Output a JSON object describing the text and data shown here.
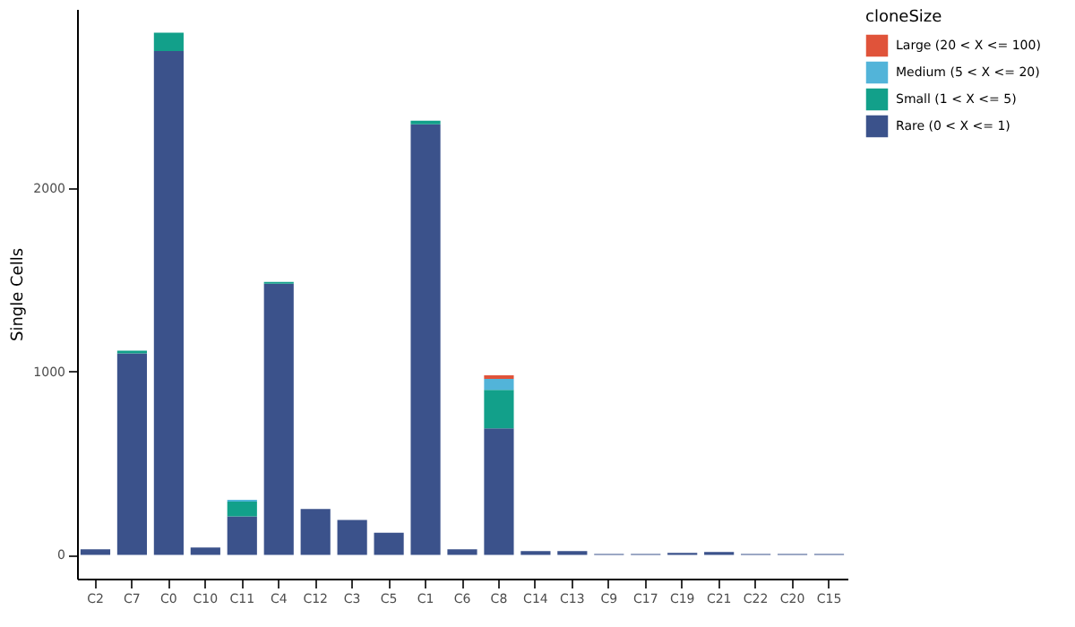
{
  "chart_data": {
    "type": "bar",
    "stacked": true,
    "ylabel": "Single Cells",
    "legend_title": "cloneSize",
    "legend": "right",
    "grid": false,
    "categories": [
      "C2",
      "C7",
      "C0",
      "C10",
      "C11",
      "C4",
      "C12",
      "C3",
      "C5",
      "C1",
      "C6",
      "C8",
      "C14",
      "C13",
      "C9",
      "C17",
      "C19",
      "C21",
      "C22",
      "C20",
      "C15"
    ],
    "ylim": [
      -130,
      2980
    ],
    "yticks": [
      0,
      1000,
      2000
    ],
    "series": [
      {
        "name": "Rare (0 < X <= 1)",
        "color": "#3b528b",
        "values": [
          30,
          1100,
          2750,
          40,
          210,
          1480,
          250,
          190,
          120,
          2350,
          30,
          690,
          20,
          20,
          5,
          5,
          10,
          15,
          5,
          5,
          5
        ]
      },
      {
        "name": "Small (1 < X <= 5)",
        "color": "#12a08a",
        "values": [
          0,
          15,
          100,
          0,
          80,
          10,
          0,
          0,
          0,
          20,
          0,
          210,
          0,
          0,
          0,
          0,
          0,
          0,
          0,
          0,
          0
        ]
      },
      {
        "name": "Medium (5 < X <= 20)",
        "color": "#52b4d9",
        "values": [
          0,
          0,
          0,
          0,
          10,
          0,
          0,
          0,
          0,
          0,
          0,
          60,
          0,
          0,
          0,
          0,
          0,
          0,
          0,
          0,
          0
        ]
      },
      {
        "name": "Large (20 < X <= 100)",
        "color": "#e0533a",
        "values": [
          0,
          0,
          0,
          0,
          0,
          0,
          0,
          0,
          0,
          0,
          0,
          20,
          0,
          0,
          0,
          0,
          0,
          0,
          0,
          0,
          0
        ]
      }
    ]
  }
}
